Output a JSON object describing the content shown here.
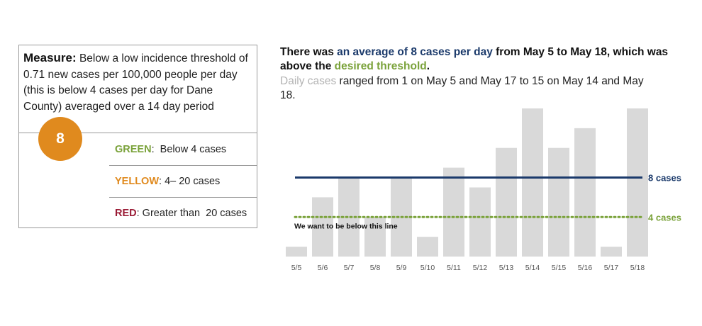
{
  "measure": {
    "label": "Measure:",
    "text": "Below a low incidence threshold of 0.71 new cases per 100,000 people per day (this is below 4 cases per day for Dane County) averaged over a 14 day period"
  },
  "status": {
    "value": "8",
    "color": "#e08a1e"
  },
  "levels": [
    {
      "name": "GREEN",
      "sep": ":",
      "desc": "  Below 4 cases",
      "color": "#7aa23a"
    },
    {
      "name": "YELLOW",
      "sep": ":",
      "desc": " 4– 20 cases",
      "color": "#e08a1e"
    },
    {
      "name": "RED",
      "sep": ":",
      "desc": " Greater than  20 cases",
      "color": "#9a1b35"
    }
  ],
  "headline": {
    "p1": "There was ",
    "p2": "an average of 8 cases per day",
    "p3": " from May 5 to May 18, which was above the ",
    "p4": "desired threshold",
    "p5": ".",
    "avg_color": "#1b3a6b",
    "threshold_color": "#7aa23a"
  },
  "subtext": {
    "lead": "Daily cases",
    "rest": " ranged from 1 on May 5 and May 17 to 15 on May 14 and May 18.",
    "lead_color": "#b3b3b3"
  },
  "chart_data": {
    "type": "bar",
    "categories": [
      "5/5",
      "5/6",
      "5/7",
      "5/8",
      "5/9",
      "5/10",
      "5/11",
      "5/12",
      "5/13",
      "5/14",
      "5/15",
      "5/16",
      "5/17",
      "5/18"
    ],
    "values": [
      1,
      6,
      8,
      4,
      8,
      2,
      9,
      7,
      11,
      15,
      11,
      13,
      1,
      15
    ],
    "ylim": [
      0,
      15
    ],
    "bar_color": "#d9d9d9",
    "reference_lines": [
      {
        "label": "8 cases",
        "value": 8,
        "color": "#1b3a6b",
        "style": "solid"
      },
      {
        "label": "4 cases",
        "value": 4,
        "color": "#7aa23a",
        "style": "dotted"
      }
    ],
    "annotation": "We want to be below this line"
  }
}
